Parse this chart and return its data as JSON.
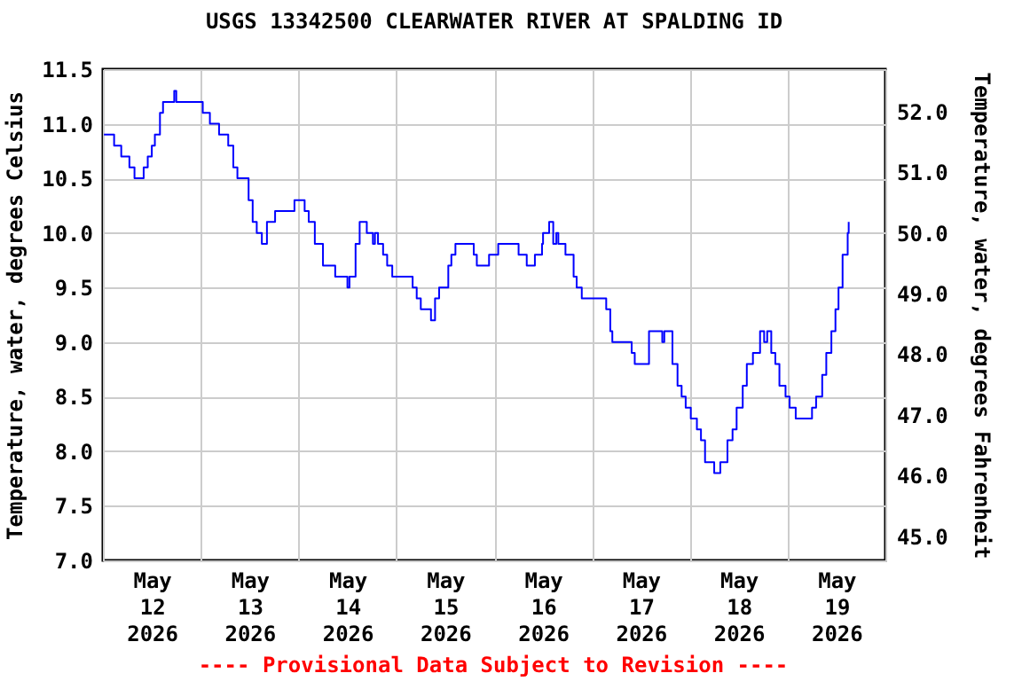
{
  "chart_data": {
    "type": "step",
    "title": "USGS 13342500 CLEARWATER RIVER AT SPALDING ID",
    "ylabel": "Temperature, water, degrees Celsius",
    "y2label": "Temperature, water, degrees Fahrenheit",
    "annotations": [
      "---- Provisional Data Subject to Revision ----"
    ],
    "color": "#0000ff",
    "grid": true,
    "xlim": [
      "2026-05-12T00:00",
      "2026-05-20T00:00"
    ],
    "xticks": [
      {
        "value": "2026-05-12T00:00",
        "label": null
      },
      {
        "value": "2026-05-12T12:00",
        "label": "May\n12\n2026"
      },
      {
        "value": "2026-05-13T00:00",
        "label": null
      },
      {
        "value": "2026-05-13T12:00",
        "label": "May\n13\n2026"
      },
      {
        "value": "2026-05-14T00:00",
        "label": null
      },
      {
        "value": "2026-05-14T12:00",
        "label": "May\n14\n2026"
      },
      {
        "value": "2026-05-15T00:00",
        "label": null
      },
      {
        "value": "2026-05-15T12:00",
        "label": "May\n15\n2026"
      },
      {
        "value": "2026-05-16T00:00",
        "label": null
      },
      {
        "value": "2026-05-16T12:00",
        "label": "May\n16\n2026"
      },
      {
        "value": "2026-05-17T00:00",
        "label": null
      },
      {
        "value": "2026-05-17T12:00",
        "label": "May\n17\n2026"
      },
      {
        "value": "2026-05-18T00:00",
        "label": null
      },
      {
        "value": "2026-05-18T12:00",
        "label": "May\n18\n2026"
      },
      {
        "value": "2026-05-19T00:00",
        "label": null
      },
      {
        "value": "2026-05-19T12:00",
        "label": "May\n19\n2026"
      },
      {
        "value": "2026-05-20T00:00",
        "label": null
      }
    ],
    "ylim": [
      7.0,
      11.5
    ],
    "yticks": [
      {
        "value": 7,
        "label": "7.0"
      },
      7.5,
      {
        "value": 8,
        "label": "8.0"
      },
      8.5,
      {
        "value": 9,
        "label": "9.0"
      },
      9.5,
      {
        "value": 10,
        "label": "10.0"
      },
      10.5,
      {
        "value": 11,
        "label": "11.0"
      },
      11.5
    ],
    "y2lim": [
      44.6,
      52.7
    ],
    "y2ticks": [
      {
        "value": 45,
        "label": "45.0"
      },
      {
        "value": 46,
        "label": "46.0"
      },
      {
        "value": 47,
        "label": "47.0"
      },
      {
        "value": 48,
        "label": "48.0"
      },
      {
        "value": 49,
        "label": "49.0"
      },
      {
        "value": 50,
        "label": "50.0"
      },
      {
        "value": 51,
        "label": "51.0"
      },
      {
        "value": 52,
        "label": "52.0"
      }
    ],
    "x": [
      "2026-05-12T00:15",
      "2026-05-12T02:45",
      "2026-05-12T04:30",
      "2026-05-12T06:30",
      "2026-05-12T07:45",
      "2026-05-12T10:00",
      "2026-05-12T11:00",
      "2026-05-12T12:00",
      "2026-05-12T12:45",
      "2026-05-12T14:00",
      "2026-05-12T14:45",
      "2026-05-12T17:30",
      "2026-05-12T18:00",
      "2026-05-13T00:30",
      "2026-05-13T02:15",
      "2026-05-13T04:30",
      "2026-05-13T06:45",
      "2026-05-13T08:00",
      "2026-05-13T09:00",
      "2026-05-13T11:45",
      "2026-05-13T12:45",
      "2026-05-13T13:45",
      "2026-05-13T15:00",
      "2026-05-13T16:15",
      "2026-05-13T18:15",
      "2026-05-13T23:00",
      "2026-05-14T01:30",
      "2026-05-14T02:30",
      "2026-05-14T04:00",
      "2026-05-14T06:00",
      "2026-05-14T09:00",
      "2026-05-14T12:00",
      "2026-05-14T12:30",
      "2026-05-14T14:00",
      "2026-05-14T15:00",
      "2026-05-14T16:45",
      "2026-05-14T18:15",
      "2026-05-14T18:45",
      "2026-05-14T19:30",
      "2026-05-14T20:45",
      "2026-05-14T21:45",
      "2026-05-14T23:00",
      "2026-05-15T04:00",
      "2026-05-15T05:00",
      "2026-05-15T06:00",
      "2026-05-15T08:30",
      "2026-05-15T09:30",
      "2026-05-15T10:30",
      "2026-05-15T12:45",
      "2026-05-15T13:30",
      "2026-05-15T14:30",
      "2026-05-15T19:00",
      "2026-05-15T19:45",
      "2026-05-15T22:45",
      "2026-05-16T01:00",
      "2026-05-16T06:00",
      "2026-05-16T08:00",
      "2026-05-16T10:00",
      "2026-05-16T11:45",
      "2026-05-16T12:00",
      "2026-05-16T13:30",
      "2026-05-16T14:30",
      "2026-05-16T15:15",
      "2026-05-16T15:45",
      "2026-05-16T17:30",
      "2026-05-16T19:30",
      "2026-05-16T20:15",
      "2026-05-16T21:30",
      "2026-05-17T03:30",
      "2026-05-17T04:30",
      "2026-05-17T05:00",
      "2026-05-17T09:45",
      "2026-05-17T10:30",
      "2026-05-17T14:00",
      "2026-05-17T17:15",
      "2026-05-17T17:45",
      "2026-05-17T19:45",
      "2026-05-17T21:00",
      "2026-05-17T22:00",
      "2026-05-17T23:00",
      "2026-05-18T00:15",
      "2026-05-18T01:45",
      "2026-05-18T02:45",
      "2026-05-18T03:45",
      "2026-05-18T06:00",
      "2026-05-18T07:30",
      "2026-05-18T09:15",
      "2026-05-18T10:30",
      "2026-05-18T11:30",
      "2026-05-18T13:00",
      "2026-05-18T14:00",
      "2026-05-18T15:30",
      "2026-05-18T17:15",
      "2026-05-18T18:15",
      "2026-05-18T19:00",
      "2026-05-18T20:00",
      "2026-05-18T21:00",
      "2026-05-18T22:00",
      "2026-05-18T23:30",
      "2026-05-19T00:30",
      "2026-05-19T02:00",
      "2026-05-19T06:00",
      "2026-05-19T07:00",
      "2026-05-19T08:30",
      "2026-05-19T09:30",
      "2026-05-19T10:45",
      "2026-05-19T11:45",
      "2026-05-19T12:30",
      "2026-05-19T13:30",
      "2026-05-19T14:45",
      "2026-05-19T15:00"
    ],
    "values": [
      10.9,
      10.8,
      10.7,
      10.6,
      10.5,
      10.6,
      10.7,
      10.8,
      10.9,
      11.1,
      11.2,
      11.3,
      11.2,
      11.1,
      11.0,
      10.9,
      10.8,
      10.6,
      10.5,
      10.3,
      10.1,
      10.0,
      9.9,
      10.1,
      10.2,
      10.3,
      10.2,
      10.1,
      9.9,
      9.7,
      9.6,
      9.5,
      9.6,
      9.9,
      10.1,
      10.0,
      9.9,
      10.0,
      9.9,
      9.8,
      9.7,
      9.6,
      9.5,
      9.4,
      9.3,
      9.2,
      9.4,
      9.5,
      9.7,
      9.8,
      9.9,
      9.8,
      9.7,
      9.8,
      9.9,
      9.8,
      9.7,
      9.8,
      9.9,
      10.0,
      10.1,
      9.9,
      10.0,
      9.9,
      9.8,
      9.6,
      9.5,
      9.4,
      9.3,
      9.1,
      9.0,
      8.9,
      8.8,
      9.1,
      9.0,
      9.1,
      8.8,
      8.6,
      8.5,
      8.4,
      8.3,
      8.2,
      8.1,
      7.9,
      7.8,
      7.9,
      8.1,
      8.2,
      8.4,
      8.6,
      8.8,
      8.9,
      9.1,
      9.0,
      9.1,
      8.9,
      8.8,
      8.6,
      8.5,
      8.4,
      8.3,
      8.4,
      8.5,
      8.7,
      8.9,
      9.1,
      9.3,
      9.5,
      9.8,
      10.0,
      10.1
    ]
  }
}
